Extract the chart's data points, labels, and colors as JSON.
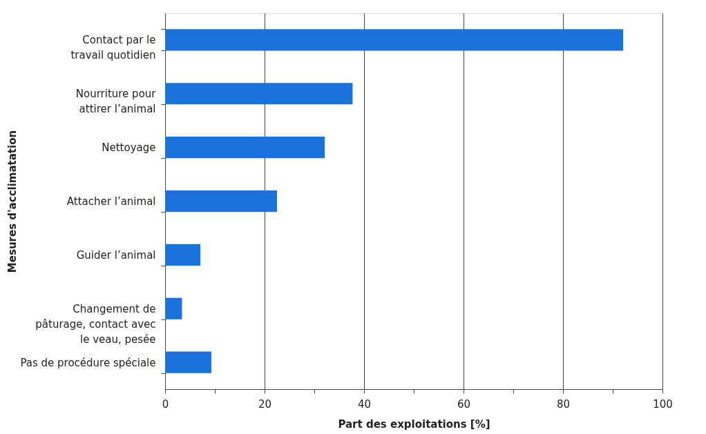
{
  "chart_data": {
    "type": "bar",
    "orientation": "horizontal",
    "categories": [
      "Contact par le\ntravail quotidien",
      "Nourriture pour\nattirer l’animal",
      "Nettoyage",
      "Attacher l’animal",
      "Guider l’animal",
      "Changement de\npâturage, contact avec\nle veau, pesée",
      "Pas de procédure spéciale"
    ],
    "values": [
      92.1,
      37.7,
      32.1,
      22.5,
      7.1,
      3.4,
      9.3
    ],
    "color": "#1a73d9",
    "xlabel": "Part des exploitations  [%]",
    "ylabel": "Mesures d'acclimatation",
    "xlim": [
      0,
      100
    ],
    "xticks": [
      0,
      {
        "value": 10,
        "label": null
      },
      20,
      {
        "value": 30,
        "label": null
      },
      40,
      {
        "value": 50,
        "label": null
      },
      60,
      {
        "value": 70,
        "label": null
      },
      80,
      {
        "value": 90,
        "label": null
      },
      100
    ],
    "grid": "x"
  }
}
